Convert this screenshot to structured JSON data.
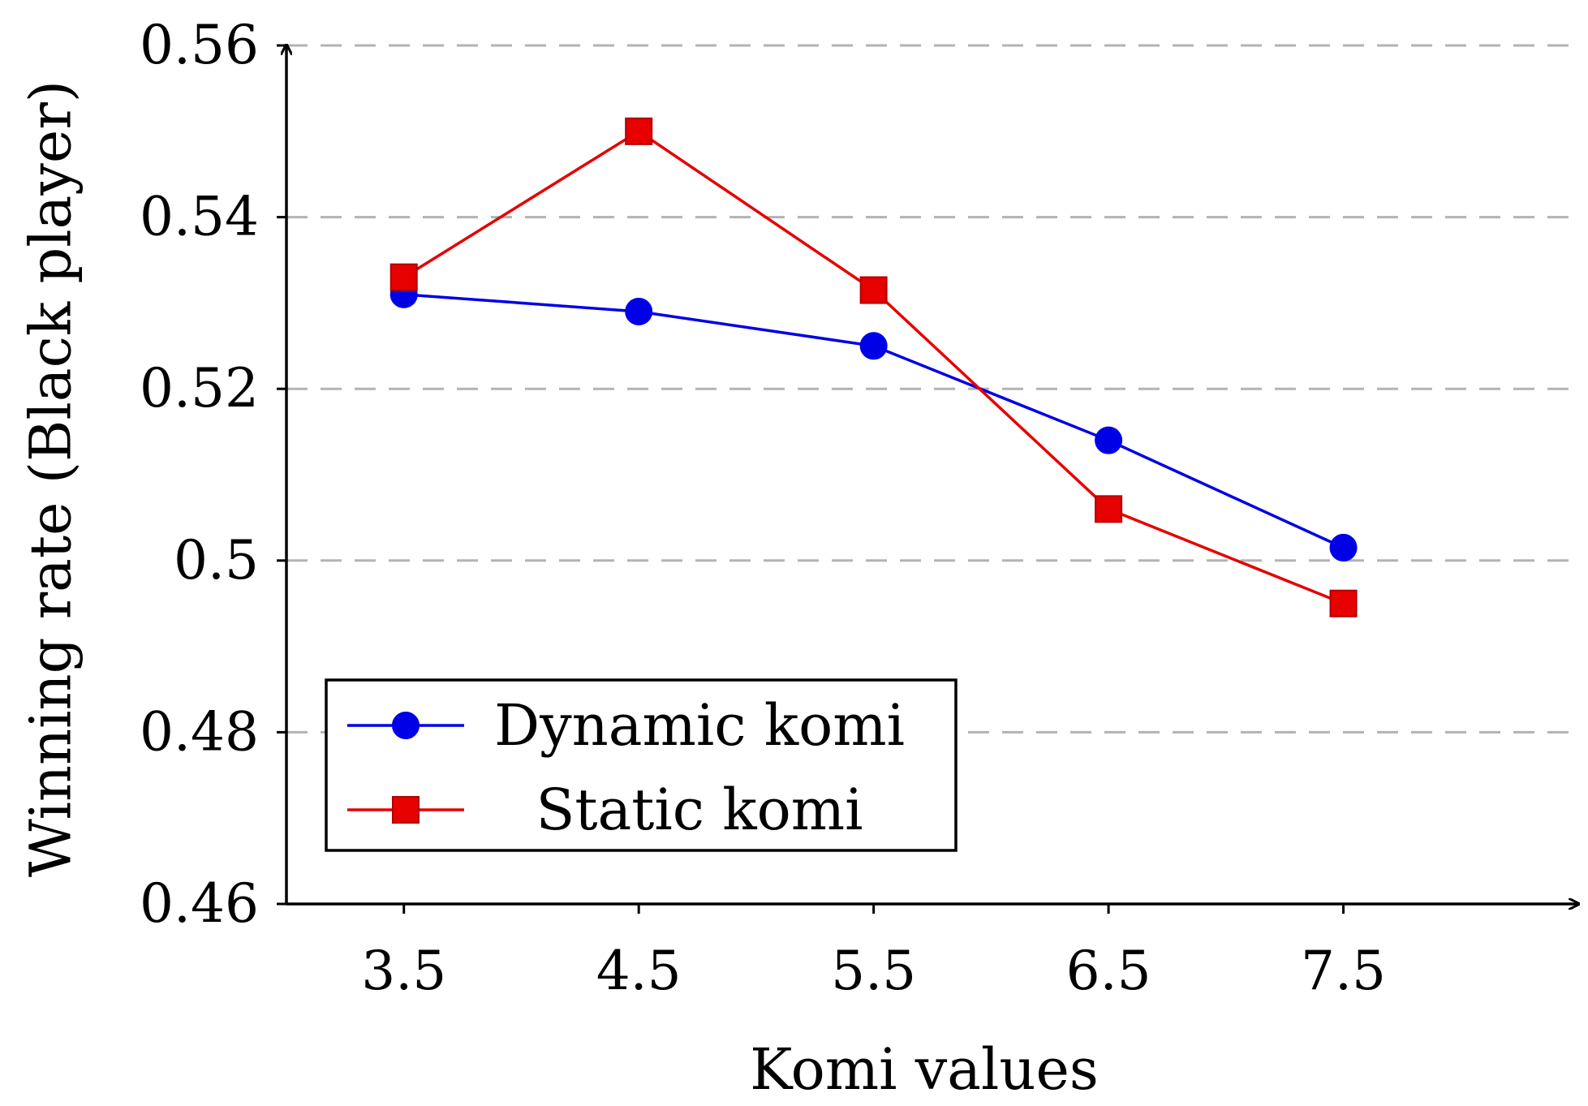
{
  "chart_data": {
    "type": "line",
    "title": "",
    "xlabel": "Komi values",
    "ylabel": "Winning rate (Black player)",
    "x": [
      3.5,
      4.5,
      5.5,
      6.5,
      7.5
    ],
    "xticks": [
      "3.5",
      "4.5",
      "5.5",
      "6.5",
      "7.5"
    ],
    "xlim": [
      3.0,
      8.5
    ],
    "ylim": [
      0.46,
      0.56
    ],
    "yticks": [
      "0.46",
      "0.48",
      "0.5",
      "0.52",
      "0.54",
      "0.56"
    ],
    "grid": "horizontal dashed",
    "legend_position": "bottom-left",
    "series": [
      {
        "name": "Dynamic komi",
        "color": "#0000e6",
        "marker": "circle",
        "values": [
          0.531,
          0.529,
          0.525,
          0.514,
          0.5015
        ]
      },
      {
        "name": "Static komi",
        "color": "#e60000",
        "marker": "square",
        "values": [
          0.533,
          0.55,
          0.5315,
          0.506,
          0.495
        ]
      }
    ]
  }
}
